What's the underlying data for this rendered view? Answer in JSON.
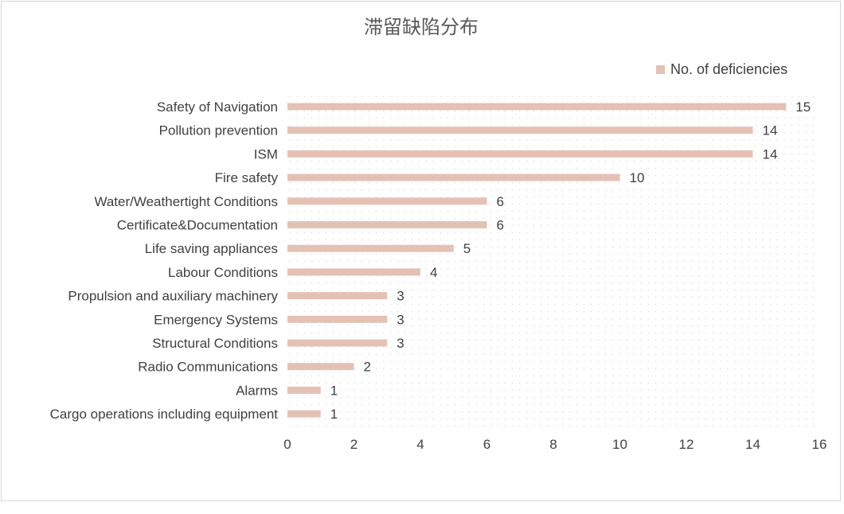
{
  "chart_data": {
    "type": "bar",
    "orientation": "horizontal",
    "title": "滞留缺陷分布",
    "categories": [
      "Safety of Navigation",
      "Pollution prevention",
      "ISM",
      "Fire safety",
      "Water/Weathertight Conditions",
      "Certificate&Documentation",
      "Life saving appliances",
      "Labour Conditions",
      "Propulsion and auxiliary machinery",
      "Emergency Systems",
      "Structural Conditions",
      "Radio Communications",
      "Alarms",
      "Cargo operations including equipment"
    ],
    "series": [
      {
        "name": "No. of deficiencies",
        "values": [
          15,
          14,
          14,
          10,
          6,
          6,
          5,
          4,
          3,
          3,
          3,
          2,
          1,
          1
        ]
      }
    ],
    "xlim": [
      0,
      16
    ],
    "x_ticks": [
      "0",
      "2",
      "4",
      "6",
      "8",
      "10",
      "12",
      "14",
      "16"
    ],
    "data_labels": true,
    "legend_position": "top-right",
    "colors": {
      "bar": "#e4c1b5",
      "plot_dots": "#e8e8e8"
    }
  }
}
